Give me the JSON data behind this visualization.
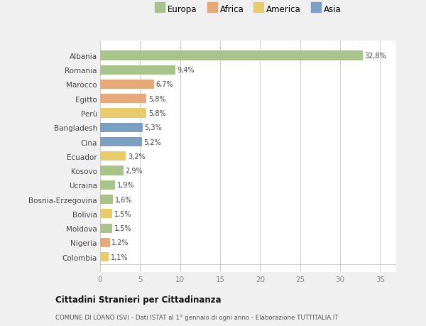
{
  "categories": [
    "Albania",
    "Romania",
    "Marocco",
    "Egitto",
    "Perù",
    "Bangladesh",
    "Cina",
    "Ecuador",
    "Kosovo",
    "Ucraina",
    "Bosnia-Erzegovina",
    "Bolivia",
    "Moldova",
    "Nigeria",
    "Colombia"
  ],
  "values": [
    32.8,
    9.4,
    6.7,
    5.8,
    5.8,
    5.3,
    5.2,
    3.2,
    2.9,
    1.9,
    1.6,
    1.5,
    1.5,
    1.2,
    1.1
  ],
  "labels": [
    "32,8%",
    "9,4%",
    "6,7%",
    "5,8%",
    "5,8%",
    "5,3%",
    "5,2%",
    "3,2%",
    "2,9%",
    "1,9%",
    "1,6%",
    "1,5%",
    "1,5%",
    "1,2%",
    "1,1%"
  ],
  "continent": [
    "Europa",
    "Europa",
    "Africa",
    "Africa",
    "America",
    "Asia",
    "Asia",
    "America",
    "Europa",
    "Europa",
    "Europa",
    "America",
    "Europa",
    "Africa",
    "America"
  ],
  "colors": {
    "Europa": "#a8c48a",
    "Africa": "#e8a97a",
    "America": "#e8cb6a",
    "Asia": "#7a9fc0"
  },
  "xlim": [
    0,
    37
  ],
  "xticks": [
    0,
    5,
    10,
    15,
    20,
    25,
    30,
    35
  ],
  "title1": "Cittadini Stranieri per Cittadinanza",
  "title2": "COMUNE DI LOANO (SV) - Dati ISTAT al 1° gennaio di ogni anno - Elaborazione TUTTITALIA.IT",
  "background_color": "#f0f0f0",
  "plot_bg_color": "#ffffff",
  "legend_order": [
    "Europa",
    "Africa",
    "America",
    "Asia"
  ]
}
